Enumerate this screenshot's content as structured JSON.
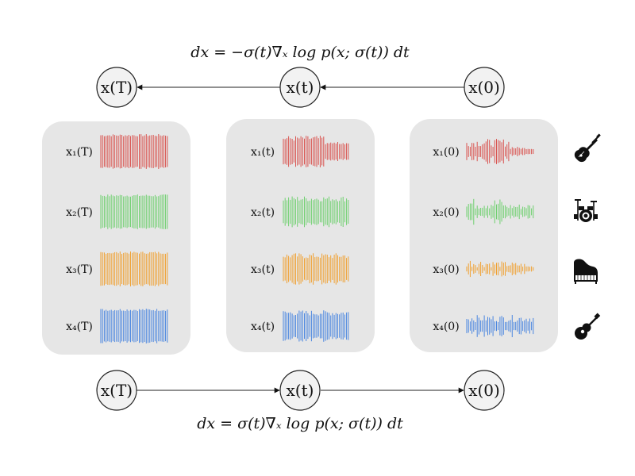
{
  "equations": {
    "reverse": "dx = −σ(t)∇ₓ log p(x; σ(t)) dt",
    "forward": "dx = σ(t)∇ₓ log p(x; σ(t)) dt"
  },
  "nodes": {
    "top": [
      "x(T)",
      "x(t)",
      "x(0)"
    ],
    "bottom": [
      "x(T)",
      "x(t)",
      "x(0)"
    ]
  },
  "panels": [
    {
      "labels": [
        "x₁(T)",
        "x₂(T)",
        "x₃(T)",
        "x₄(T)"
      ],
      "state": "noise"
    },
    {
      "labels": [
        "x₁(t)",
        "x₂(t)",
        "x₃(t)",
        "x₄(t)"
      ],
      "state": "partial"
    },
    {
      "labels": [
        "x₁(0)",
        "x₂(0)",
        "x₃(0)",
        "x₄(0)"
      ],
      "state": "clean"
    }
  ],
  "tracks": [
    {
      "color": "#d9534f"
    },
    {
      "color": "#6fd06f"
    },
    {
      "color": "#f0a030"
    },
    {
      "color": "#4a86e0"
    }
  ],
  "instruments": [
    "electric-guitar-icon",
    "drum-kit-icon",
    "grand-piano-icon",
    "acoustic-guitar-icon"
  ],
  "colors": {
    "panel": "#e6e6e6",
    "node_fill": "#f2f2f2",
    "stroke": "#222222"
  }
}
